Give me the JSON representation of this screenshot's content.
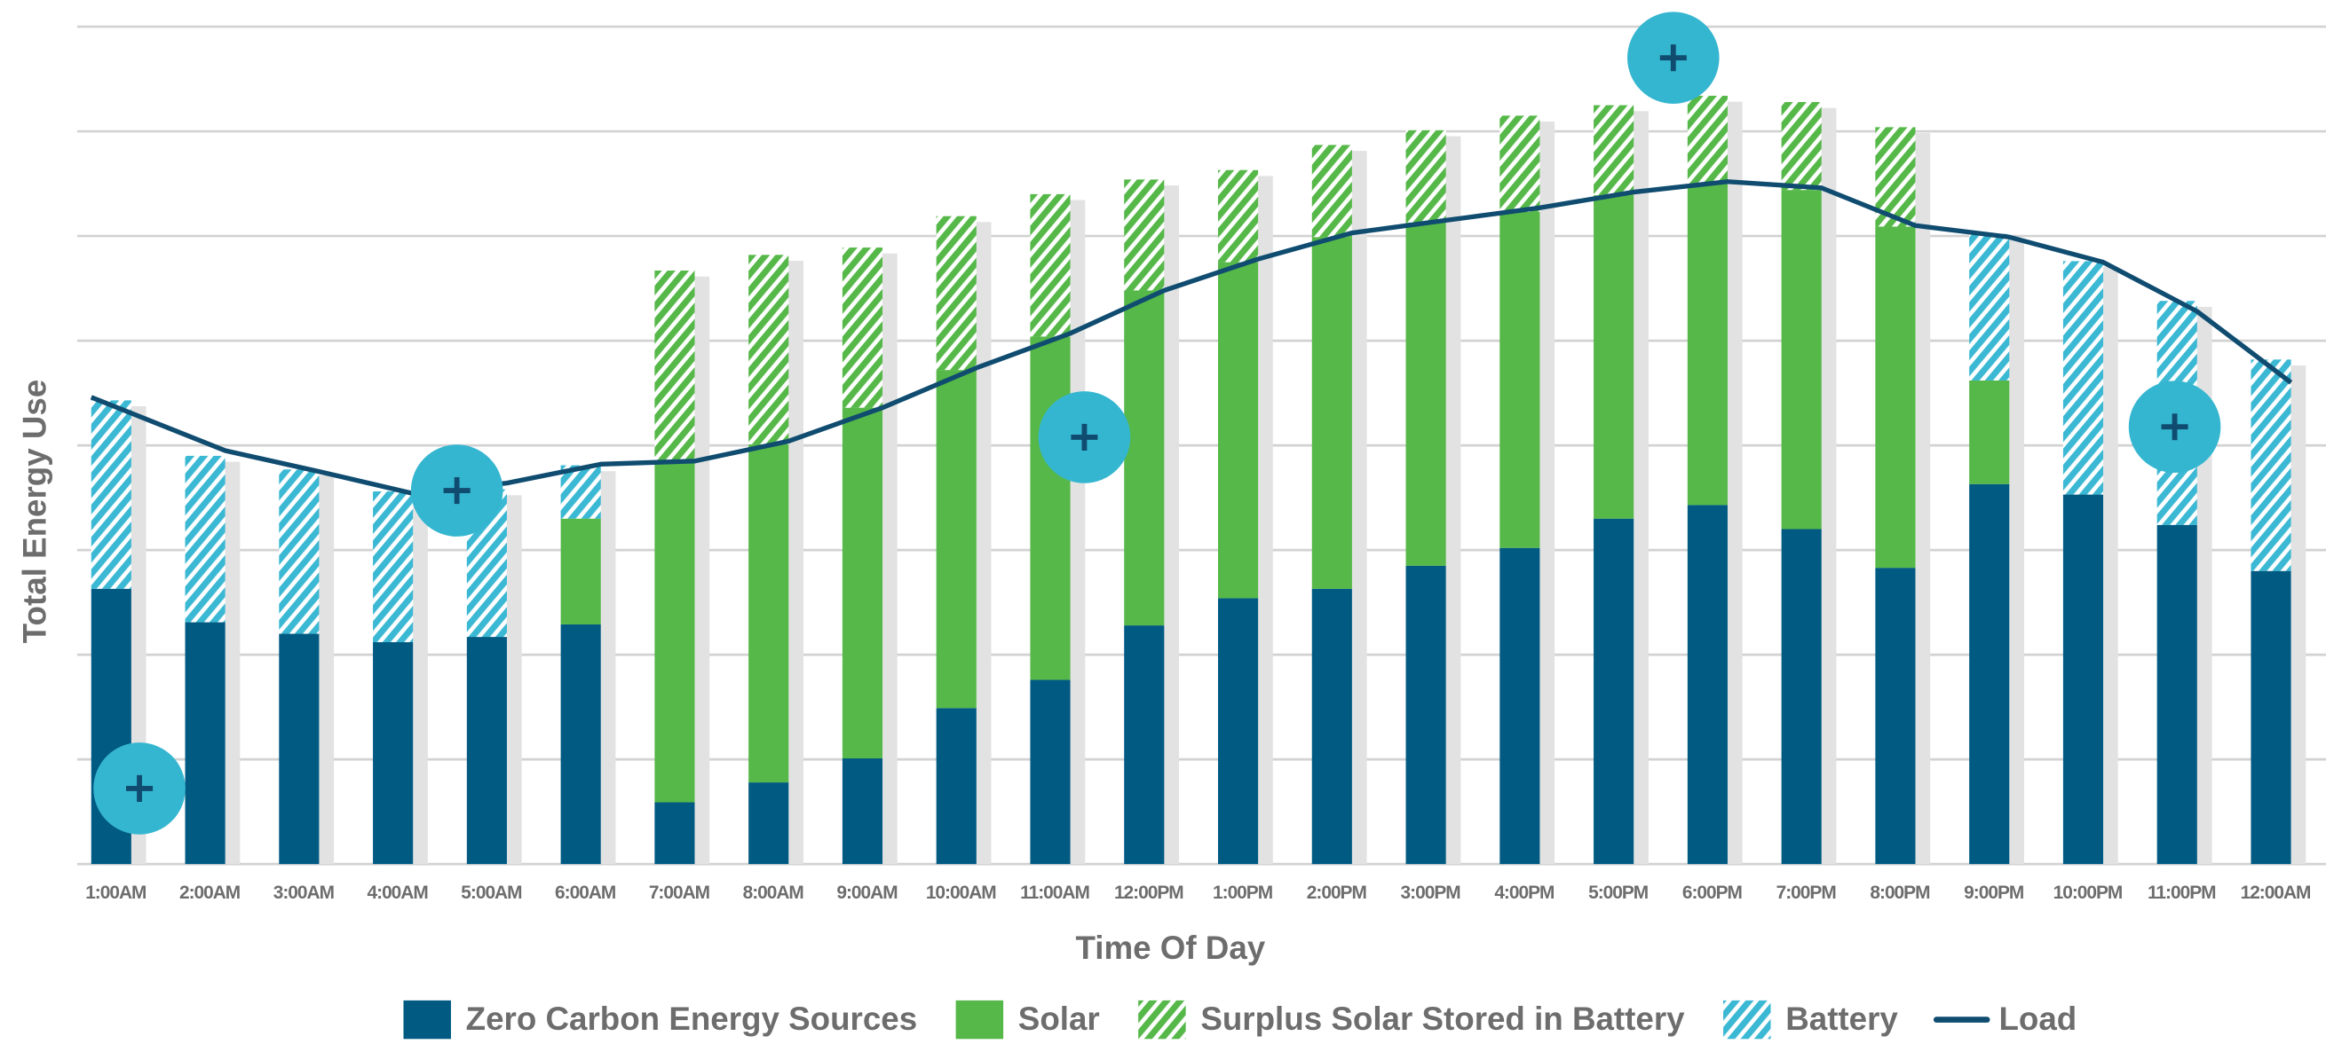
{
  "chart_data": {
    "type": "stacked_bar_line",
    "x_label": "Time Of Day",
    "y_label": "Total Energy Use",
    "categories": [
      "1:00AM",
      "2:00AM",
      "3:00AM",
      "4:00AM",
      "5:00AM",
      "6:00AM",
      "7:00AM",
      "8:00AM",
      "9:00AM",
      "10:00AM",
      "11:00AM",
      "12:00PM",
      "1:00PM",
      "2:00PM",
      "3:00PM",
      "4:00PM",
      "5:00PM",
      "6:00PM",
      "7:00PM",
      "8:00PM",
      "9:00PM",
      "10:00PM",
      "11:00PM",
      "12:00AM"
    ],
    "ylim": [
      0,
      8
    ],
    "yticks": [
      0,
      1,
      2,
      3,
      4,
      5,
      6,
      7,
      8
    ],
    "grid": true,
    "series": [
      {
        "name": "Zero Carbon Energy Sources",
        "color": "#005a82",
        "pattern": "solid",
        "values": [
          2.63,
          2.31,
          2.2,
          2.12,
          2.17,
          2.29,
          0.59,
          0.78,
          1.01,
          1.49,
          1.76,
          2.28,
          2.54,
          2.63,
          2.85,
          3.02,
          3.3,
          3.43,
          3.2,
          2.83,
          3.63,
          3.53,
          3.24,
          2.8
        ]
      },
      {
        "name": "Solar",
        "color": "#55b848",
        "pattern": "solid",
        "values": [
          0,
          0,
          0,
          0,
          0,
          1.01,
          3.25,
          3.23,
          3.35,
          3.23,
          3.28,
          3.2,
          3.21,
          3.36,
          3.28,
          3.21,
          3.09,
          3.07,
          3.24,
          3.26,
          0.99,
          0,
          0,
          0
        ]
      },
      {
        "name": "Surplus Solar Stored in Battery",
        "color": "#55b848",
        "pattern": "hatch",
        "values": [
          0,
          0,
          0,
          0,
          0,
          0,
          1.83,
          1.81,
          1.53,
          1.47,
          1.36,
          1.06,
          0.88,
          0.88,
          0.88,
          0.92,
          0.86,
          0.84,
          0.84,
          0.95,
          0,
          0,
          0,
          0
        ]
      },
      {
        "name": "Battery",
        "color": "#3bb8d3",
        "pattern": "hatch",
        "values": [
          1.8,
          1.59,
          1.57,
          1.44,
          1.41,
          0.51,
          0,
          0,
          0,
          0,
          0,
          0,
          0,
          0,
          0,
          0,
          0,
          0,
          0,
          0,
          1.4,
          2.23,
          2.14,
          2.02
        ]
      },
      {
        "name": "Load",
        "color": "#0f4c70",
        "type": "line",
        "values": [
          4.46,
          3.95,
          3.75,
          3.54,
          3.64,
          3.82,
          3.85,
          4.04,
          4.36,
          4.74,
          5.07,
          5.48,
          5.78,
          6.03,
          6.15,
          6.27,
          6.42,
          6.52,
          6.46,
          6.1,
          5.99,
          5.75,
          5.28,
          4.6
        ]
      }
    ]
  }
}
